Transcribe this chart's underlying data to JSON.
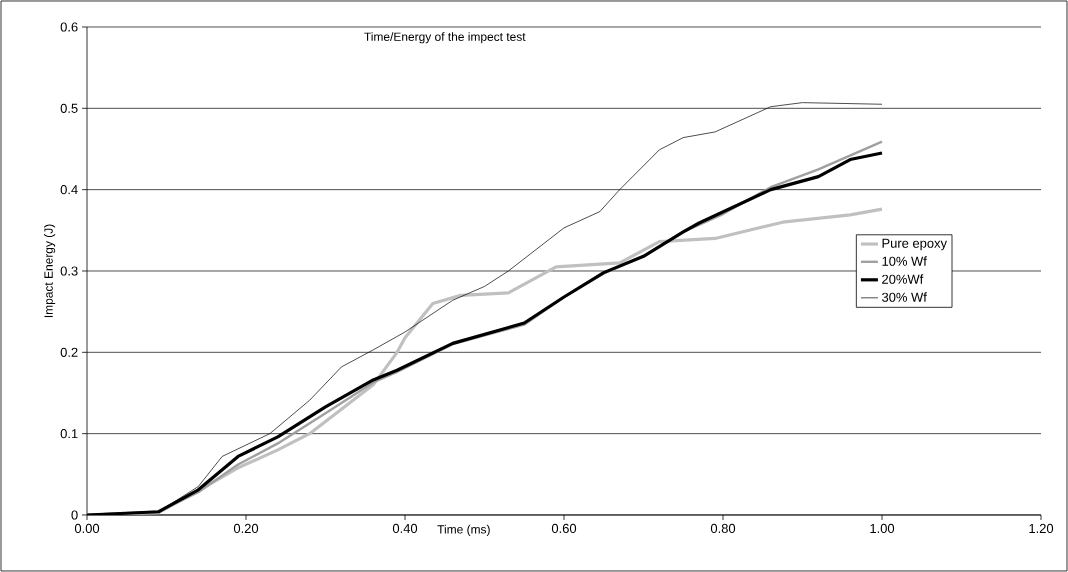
{
  "chart_data": {
    "type": "line",
    "title": "Time/Energy of the impect test",
    "xlabel": "Time (ms)",
    "ylabel": "Impact Energy (J)",
    "xlim": [
      0,
      1.2
    ],
    "ylim": [
      0,
      0.6
    ],
    "xticks": [
      {
        "value": 0,
        "label": "0.00"
      },
      {
        "value": 0.2,
        "label": "0.20"
      },
      {
        "value": 0.4,
        "label": "0.40"
      },
      {
        "value": 0.6,
        "label": "0.60"
      },
      {
        "value": 0.8,
        "label": "0.80"
      },
      {
        "value": 1.0,
        "label": "1.00"
      },
      {
        "value": 1.2,
        "label": "1.20"
      }
    ],
    "yticks": [
      0,
      0.1,
      0.2,
      0.3,
      0.4,
      0.5,
      0.6
    ],
    "grid": "y",
    "legend": "right",
    "marker": "none",
    "series": [
      {
        "name": "Pure epoxy",
        "color": "#c0c0c0",
        "x": [
          0,
          0.09,
          0.14,
          0.19,
          0.24,
          0.28,
          0.32,
          0.36,
          0.39,
          0.4,
          0.435,
          0.47,
          0.53,
          0.59,
          0.67,
          0.72,
          0.79,
          0.875,
          0.96,
          1.0
        ],
        "values": [
          0,
          0.003,
          0.03,
          0.058,
          0.08,
          0.1,
          0.13,
          0.16,
          0.2,
          0.218,
          0.26,
          0.27,
          0.273,
          0.305,
          0.31,
          0.336,
          0.34,
          0.36,
          0.369,
          0.376
        ]
      },
      {
        "name": "10% Wf",
        "color": "#a0a0a0",
        "x": [
          0,
          0.09,
          0.14,
          0.19,
          0.24,
          0.3,
          0.36,
          0.39,
          0.46,
          0.55,
          0.6,
          0.65,
          0.7,
          0.75,
          0.8,
          0.86,
          0.92,
          1.0
        ],
        "values": [
          0,
          0.004,
          0.028,
          0.062,
          0.088,
          0.125,
          0.163,
          0.176,
          0.21,
          0.234,
          0.268,
          0.297,
          0.318,
          0.348,
          0.37,
          0.403,
          0.425,
          0.459
        ]
      },
      {
        "name": "20%Wf",
        "color": "#000000",
        "x": [
          0,
          0.09,
          0.14,
          0.19,
          0.24,
          0.3,
          0.36,
          0.39,
          0.46,
          0.55,
          0.6,
          0.65,
          0.7,
          0.75,
          0.77,
          0.86,
          0.92,
          0.96,
          1.0
        ],
        "values": [
          0,
          0.004,
          0.031,
          0.072,
          0.096,
          0.133,
          0.166,
          0.178,
          0.211,
          0.236,
          0.268,
          0.298,
          0.318,
          0.348,
          0.359,
          0.4,
          0.416,
          0.437,
          0.445
        ]
      },
      {
        "name": "30% Wf",
        "color": "#000000",
        "x": [
          0,
          0.09,
          0.14,
          0.17,
          0.23,
          0.28,
          0.32,
          0.36,
          0.4,
          0.46,
          0.5,
          0.53,
          0.6,
          0.645,
          0.67,
          0.72,
          0.75,
          0.79,
          0.86,
          0.9,
          1.0
        ],
        "values": [
          0,
          0.004,
          0.035,
          0.072,
          0.1,
          0.141,
          0.182,
          0.203,
          0.225,
          0.264,
          0.281,
          0.3,
          0.353,
          0.373,
          0.4,
          0.449,
          0.464,
          0.471,
          0.502,
          0.507,
          0.505
        ]
      }
    ]
  }
}
